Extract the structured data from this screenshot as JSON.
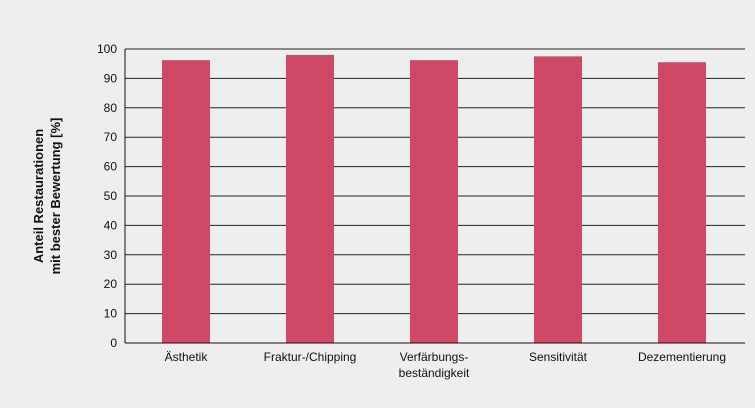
{
  "chart_data": {
    "type": "bar",
    "categories": [
      [
        "Ästhetik"
      ],
      [
        "Fraktur-/Chipping"
      ],
      [
        "Verfärbungs-",
        "beständigkeit"
      ],
      [
        "Sensitivität"
      ],
      [
        "Dezementierung"
      ]
    ],
    "values": [
      96.2,
      98.0,
      96.2,
      97.5,
      95.5
    ],
    "ylabel": [
      "Anteil Restaurationen",
      "mit bester Bewertung [%]"
    ],
    "ylim": [
      0,
      100
    ],
    "yticks": [
      0,
      10,
      20,
      30,
      40,
      50,
      60,
      70,
      80,
      90,
      100
    ],
    "grid": true,
    "bar_color": "#cf4866",
    "grid_color": "#222222",
    "background": "#eeeeee"
  }
}
